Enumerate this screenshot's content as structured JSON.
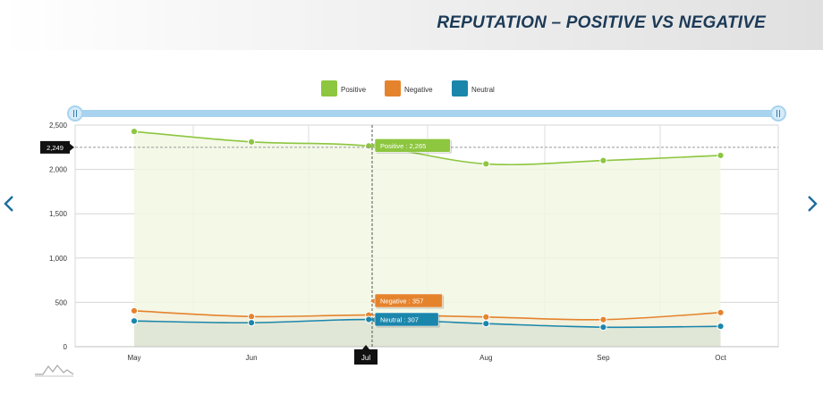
{
  "header": {
    "title": "REPUTATION – POSITIVE VS NEGATIVE"
  },
  "navigation": {
    "prev_icon": "chevron-left-icon",
    "next_icon": "chevron-right-icon",
    "color": "#1b6d9c"
  },
  "chart_data": {
    "type": "area",
    "categories": [
      "May",
      "Jun",
      "Jul",
      "Aug",
      "Sep",
      "Oct"
    ],
    "series": [
      {
        "name": "Positive",
        "color": "#8dc63f",
        "fill": "#f1f7e3",
        "values": [
          2428,
          2310,
          2265,
          2062,
          2100,
          2158
        ]
      },
      {
        "name": "Negative",
        "color": "#e5832d",
        "fill": "#f2eed9",
        "values": [
          405,
          340,
          357,
          335,
          305,
          385
        ]
      },
      {
        "name": "Neutral",
        "color": "#1a86ac",
        "fill": "#dde5d5",
        "values": [
          290,
          270,
          307,
          260,
          220,
          230
        ]
      }
    ],
    "y_ticks": [
      "0",
      "500",
      "1,000",
      "1,500",
      "2,000",
      "2,500"
    ],
    "ylim": [
      0,
      2500
    ],
    "legend_position": "top-center",
    "grid": true,
    "scroll_bar_color": "#a7d3ef",
    "crosshair": {
      "category": "Jul",
      "y_value": 2249,
      "y_label": "2,249",
      "tooltips": [
        "Positive : 2,265",
        "Negative : 357",
        "Neutral : 307"
      ]
    }
  }
}
